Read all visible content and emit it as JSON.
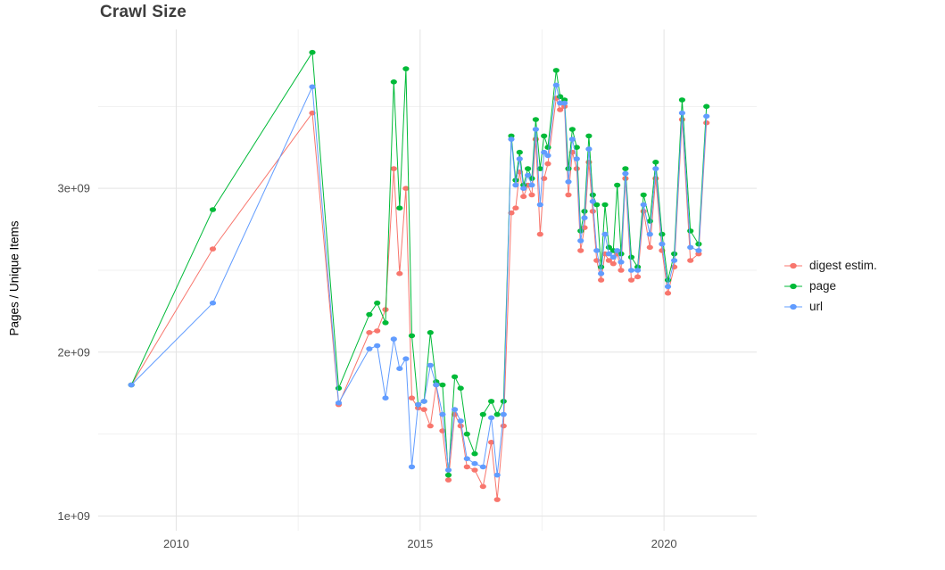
{
  "chart_data": {
    "type": "line",
    "title": "Crawl Size",
    "ylabel": "Pages / Unique Items",
    "xlabel": "",
    "values_unit": "1e9 (billions), matching y tick labels",
    "grid": true,
    "legend_position": "right",
    "xlim": [
      2008.4,
      2021.9
    ],
    "ylim": [
      0.91,
      3.97
    ],
    "x_ticks": [
      {
        "value": 2010,
        "label": "2010"
      },
      {
        "value": 2015,
        "label": "2015"
      },
      {
        "value": 2020,
        "label": "2020"
      }
    ],
    "y_ticks": [
      {
        "value": 1,
        "label": "1e+09"
      },
      {
        "value": 2,
        "label": "2e+09"
      },
      {
        "value": 3,
        "label": "3e+09"
      }
    ],
    "x_minor": [
      2012.5,
      2017.5
    ],
    "y_minor": [
      1.5,
      2.5,
      3.5
    ],
    "theme": {
      "background": "#ffffff",
      "grid_major": "#e3e3e3",
      "grid_minor": "#f1f1f1",
      "axis_text_color": "#4d4d4d",
      "title_color": "#3d3d3d",
      "legend_text_color": "#1a1a1a"
    },
    "x": [
      2009.08,
      2010.75,
      2012.79,
      2013.33,
      2013.96,
      2014.12,
      2014.29,
      2014.46,
      2014.58,
      2014.71,
      2014.83,
      2014.96,
      2015.08,
      2015.21,
      2015.33,
      2015.46,
      2015.58,
      2015.71,
      2015.83,
      2015.96,
      2016.12,
      2016.29,
      2016.46,
      2016.58,
      2016.71,
      2016.87,
      2016.96,
      2017.04,
      2017.12,
      2017.21,
      2017.29,
      2017.37,
      2017.46,
      2017.54,
      2017.62,
      2017.79,
      2017.87,
      2017.96,
      2018.04,
      2018.12,
      2018.21,
      2018.29,
      2018.37,
      2018.46,
      2018.54,
      2018.62,
      2018.71,
      2018.79,
      2018.87,
      2018.96,
      2019.04,
      2019.12,
      2019.21,
      2019.33,
      2019.46,
      2019.58,
      2019.71,
      2019.83,
      2019.96,
      2020.08,
      2020.21,
      2020.37,
      2020.54,
      2020.71,
      2020.87
    ],
    "series": [
      {
        "name": "digest estim.",
        "key": "digest-estim",
        "color": "#F8766D",
        "values": [
          1.8,
          2.63,
          3.46,
          1.68,
          2.12,
          2.13,
          2.26,
          3.12,
          2.48,
          3.0,
          1.72,
          1.66,
          1.65,
          1.55,
          1.8,
          1.52,
          1.22,
          1.62,
          1.55,
          1.3,
          1.28,
          1.18,
          1.45,
          1.1,
          1.55,
          2.85,
          2.88,
          3.1,
          2.95,
          3.02,
          2.96,
          3.3,
          2.72,
          3.06,
          3.15,
          3.55,
          3.48,
          3.5,
          2.96,
          3.22,
          3.12,
          2.62,
          2.76,
          3.16,
          2.86,
          2.56,
          2.44,
          2.6,
          2.56,
          2.54,
          2.6,
          2.5,
          3.06,
          2.44,
          2.46,
          2.86,
          2.64,
          3.06,
          2.62,
          2.36,
          2.52,
          3.42,
          2.56,
          2.6,
          3.4
        ]
      },
      {
        "name": "page",
        "key": "page",
        "color": "#00BA38",
        "values": [
          1.8,
          2.87,
          3.83,
          1.78,
          2.23,
          2.3,
          2.18,
          3.65,
          2.88,
          3.73,
          2.1,
          1.68,
          1.7,
          2.12,
          1.82,
          1.8,
          1.25,
          1.85,
          1.78,
          1.5,
          1.38,
          1.62,
          1.7,
          1.62,
          1.7,
          3.32,
          3.05,
          3.22,
          3.02,
          3.12,
          3.06,
          3.42,
          3.12,
          3.32,
          3.25,
          3.72,
          3.56,
          3.54,
          3.12,
          3.36,
          3.25,
          2.74,
          2.86,
          3.32,
          2.96,
          2.9,
          2.52,
          2.9,
          2.64,
          2.62,
          3.02,
          2.6,
          3.12,
          2.58,
          2.52,
          2.96,
          2.8,
          3.16,
          2.72,
          2.44,
          2.6,
          3.54,
          2.74,
          2.66,
          3.5
        ]
      },
      {
        "name": "url",
        "key": "url",
        "color": "#619CFF",
        "values": [
          1.8,
          2.3,
          3.62,
          1.69,
          2.02,
          2.04,
          1.72,
          2.08,
          1.9,
          1.96,
          1.3,
          1.68,
          1.7,
          1.92,
          1.8,
          1.62,
          1.28,
          1.65,
          1.58,
          1.35,
          1.32,
          1.3,
          1.6,
          1.25,
          1.62,
          3.3,
          3.02,
          3.18,
          3.0,
          3.08,
          3.02,
          3.36,
          2.9,
          3.22,
          3.2,
          3.63,
          3.52,
          3.52,
          3.04,
          3.3,
          3.18,
          2.68,
          2.82,
          3.24,
          2.92,
          2.62,
          2.48,
          2.72,
          2.6,
          2.58,
          2.62,
          2.55,
          3.09,
          2.5,
          2.5,
          2.9,
          2.72,
          3.12,
          2.66,
          2.4,
          2.56,
          3.46,
          2.64,
          2.62,
          3.44
        ]
      }
    ]
  }
}
